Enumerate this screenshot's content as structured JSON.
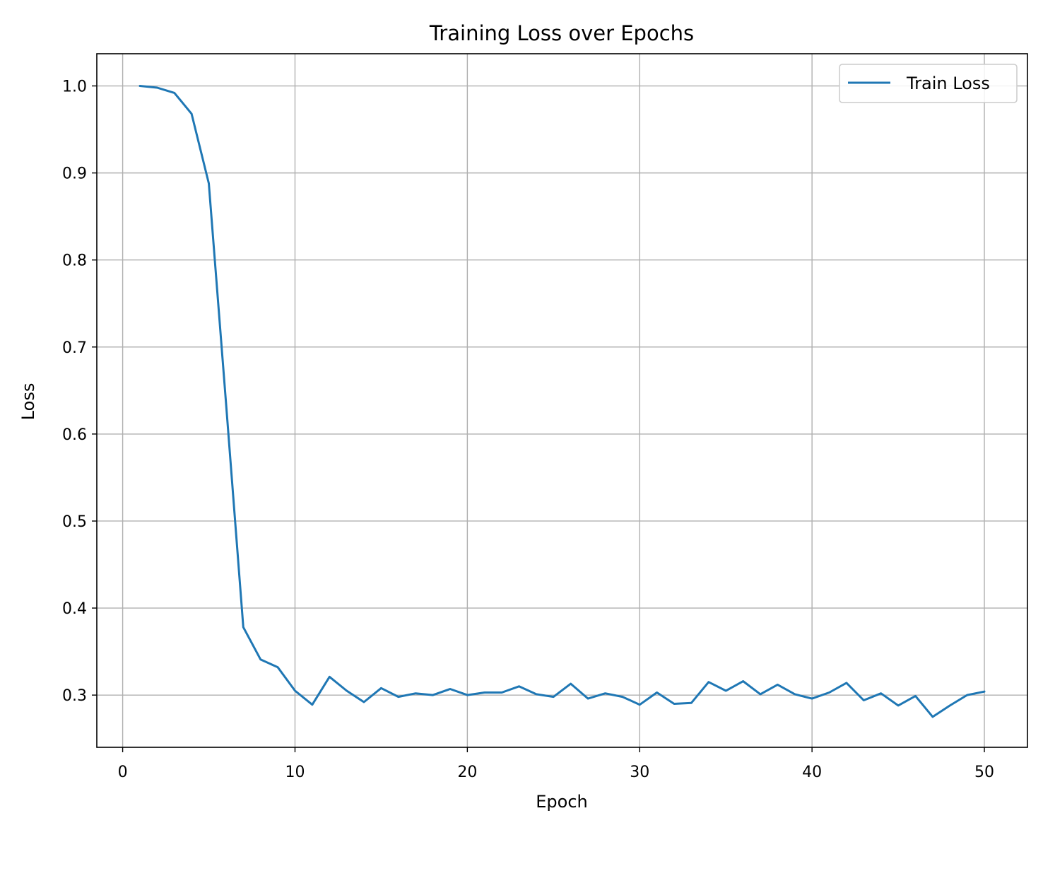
{
  "chart_data": {
    "type": "line",
    "title": "Training Loss over Epochs",
    "xlabel": "Epoch",
    "ylabel": "Loss",
    "xlim": [
      -1.5,
      52.5
    ],
    "ylim": [
      0.24,
      1.037
    ],
    "xticks": [
      0,
      10,
      20,
      30,
      40,
      50
    ],
    "xtick_labels": [
      "0",
      "10",
      "20",
      "30",
      "40",
      "50"
    ],
    "yticks": [
      0.3,
      0.4,
      0.5,
      0.6,
      0.7,
      0.8,
      0.9,
      1.0
    ],
    "ytick_labels": [
      "0.3",
      "0.4",
      "0.5",
      "0.6",
      "0.7",
      "0.8",
      "0.9",
      "1.0"
    ],
    "grid": true,
    "legend_position": "top-right",
    "series": [
      {
        "name": "Train Loss",
        "color": "#1f77b4",
        "x": [
          1,
          2,
          3,
          4,
          5,
          6,
          7,
          8,
          9,
          10,
          11,
          12,
          13,
          14,
          15,
          16,
          17,
          18,
          19,
          20,
          21,
          22,
          23,
          24,
          25,
          26,
          27,
          28,
          29,
          30,
          31,
          32,
          33,
          34,
          35,
          36,
          37,
          38,
          39,
          40,
          41,
          42,
          43,
          44,
          45,
          46,
          47,
          48,
          49,
          50
        ],
        "y": [
          1.0,
          0.998,
          0.992,
          0.968,
          0.888,
          0.635,
          0.378,
          0.341,
          0.332,
          0.305,
          0.289,
          0.321,
          0.305,
          0.292,
          0.308,
          0.298,
          0.302,
          0.3,
          0.307,
          0.3,
          0.303,
          0.303,
          0.31,
          0.301,
          0.298,
          0.313,
          0.296,
          0.302,
          0.298,
          0.289,
          0.303,
          0.29,
          0.291,
          0.315,
          0.305,
          0.316,
          0.301,
          0.312,
          0.301,
          0.296,
          0.303,
          0.314,
          0.294,
          0.302,
          0.288,
          0.299,
          0.275,
          0.288,
          0.3,
          0.304
        ]
      }
    ]
  }
}
